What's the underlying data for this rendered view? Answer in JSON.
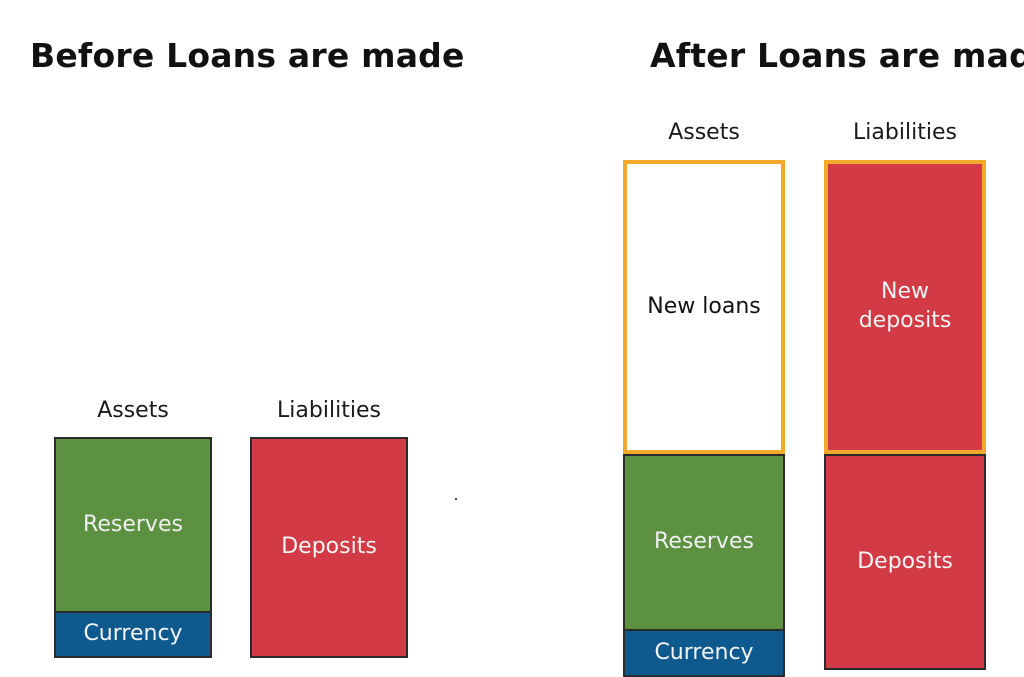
{
  "colors": {
    "reserves": "#5b9140",
    "currency": "#0e5a8f",
    "deposits": "#d23a45",
    "highlight_border": "#f3a92a",
    "light_text": "#f4f4f4",
    "dark_text": "#111111"
  },
  "before": {
    "title": "Before Loans are made",
    "assets_label": "Assets",
    "liabilities_label": "Liabilities",
    "reserves": "Reserves",
    "currency": "Currency",
    "deposits": "Deposits"
  },
  "after": {
    "title": "After Loans are made",
    "assets_label": "Assets",
    "liabilities_label": "Liabilities",
    "new_loans": "New loans",
    "new_deposits": "New\ndeposits",
    "reserves": "Reserves",
    "currency": "Currency",
    "deposits": "Deposits"
  }
}
